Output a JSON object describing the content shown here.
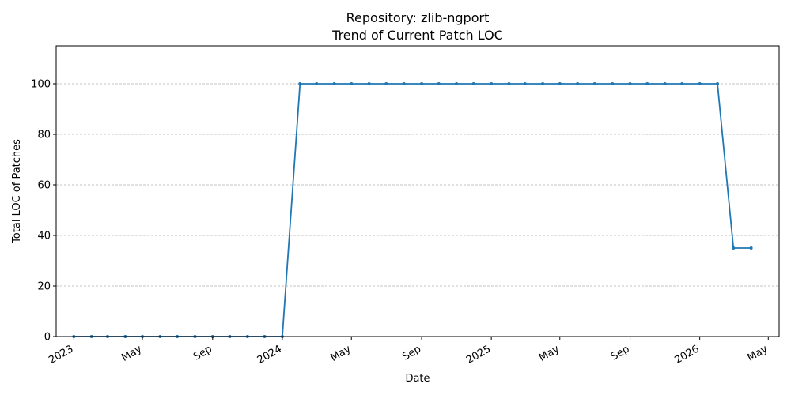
{
  "chart_data": {
    "type": "line",
    "title": "Repository: zlib-ngport",
    "subtitle": "Trend of Current Patch LOC",
    "xlabel": "Date",
    "ylabel": "Total LOC of Patches",
    "ylim": [
      0,
      115
    ],
    "xlim": [
      "2022-12-01",
      "2026-05-20"
    ],
    "yticks": [
      0,
      20,
      40,
      60,
      80,
      100
    ],
    "xticks": [
      {
        "date": "2023-01-01",
        "label": "2023"
      },
      {
        "date": "2023-05-01",
        "label": "May"
      },
      {
        "date": "2023-09-01",
        "label": "Sep"
      },
      {
        "date": "2024-01-01",
        "label": "2024"
      },
      {
        "date": "2024-05-01",
        "label": "May"
      },
      {
        "date": "2024-09-01",
        "label": "Sep"
      },
      {
        "date": "2025-01-01",
        "label": "2025"
      },
      {
        "date": "2025-05-01",
        "label": "May"
      },
      {
        "date": "2025-09-01",
        "label": "Sep"
      },
      {
        "date": "2026-01-01",
        "label": "2026"
      },
      {
        "date": "2026-05-01",
        "label": "May"
      }
    ],
    "grid": "horizontal dashed",
    "color": "#1f77b4",
    "series": [
      {
        "x": [
          "2023-01-01",
          "2023-02-01",
          "2023-03-01",
          "2023-04-01",
          "2023-05-01",
          "2023-06-01",
          "2023-07-01",
          "2023-08-01",
          "2023-09-01",
          "2023-10-01",
          "2023-11-01",
          "2023-12-01",
          "2024-01-01",
          "2024-02-01",
          "2024-03-01",
          "2024-04-01",
          "2024-05-01",
          "2024-06-01",
          "2024-07-01",
          "2024-08-01",
          "2024-09-01",
          "2024-10-01",
          "2024-11-01",
          "2024-12-01",
          "2025-01-01",
          "2025-02-01",
          "2025-03-01",
          "2025-04-01",
          "2025-05-01",
          "2025-06-01",
          "2025-07-01",
          "2025-08-01",
          "2025-09-01",
          "2025-10-01",
          "2025-11-01",
          "2025-12-01",
          "2026-01-01",
          "2026-02-01",
          "2026-03-01",
          "2026-04-01"
        ],
        "y": [
          0,
          0,
          0,
          0,
          0,
          0,
          0,
          0,
          0,
          0,
          0,
          0,
          0,
          100,
          100,
          100,
          100,
          100,
          100,
          100,
          100,
          100,
          100,
          100,
          100,
          100,
          100,
          100,
          100,
          100,
          100,
          100,
          100,
          100,
          100,
          100,
          100,
          100,
          35,
          35
        ]
      }
    ]
  }
}
